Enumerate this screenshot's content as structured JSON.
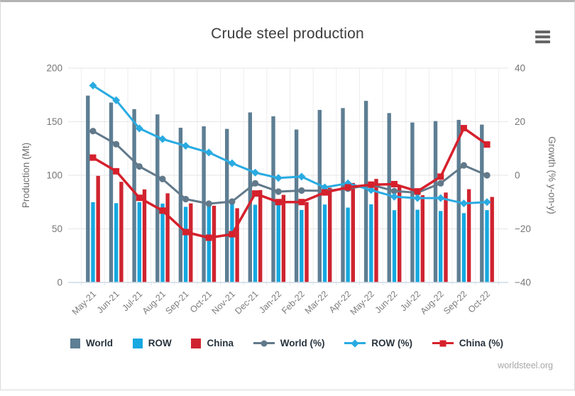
{
  "page": {
    "title": "Crude steel production",
    "menu_icon": "hamburger-menu",
    "source": "worldsteel.org"
  },
  "chart_data": {
    "type": "combo-column-line",
    "categories": [
      "May-21",
      "Jun-21",
      "Jul-21",
      "Aug-21",
      "Sep-21",
      "Oct-21",
      "Nov-21",
      "Dec-21",
      "Jan-22",
      "Feb-22",
      "Mar-22",
      "Apr-22",
      "May-22",
      "Jun-22",
      "Jul-22",
      "Aug-22",
      "Sep-22",
      "Oct-22"
    ],
    "left_axis": {
      "title": "Production (Mt)",
      "range": [
        0,
        200
      ],
      "ticks": [
        0,
        50,
        100,
        150,
        200
      ]
    },
    "right_axis": {
      "title": "Growth (% y-on-y)",
      "range": [
        -40,
        40
      ],
      "ticks": [
        -40,
        -20,
        0,
        20,
        40
      ]
    },
    "grid": "horizontal and faint vertical category boundaries",
    "legend_position": "bottom",
    "bar_series": [
      {
        "name": "World",
        "color": "#5d7e93",
        "values": [
          174.4,
          167.9,
          161.7,
          156.8,
          144.4,
          145.7,
          143.3,
          158.7,
          155.0,
          142.7,
          161.0,
          162.7,
          169.5,
          158.1,
          149.3,
          150.6,
          151.7,
          147.3
        ]
      },
      {
        "name": "ROW",
        "color": "#16a8e0",
        "values": [
          74.9,
          74.0,
          74.9,
          73.6,
          70.6,
          74.1,
          74.0,
          72.5,
          73.3,
          67.7,
          72.7,
          69.9,
          72.9,
          67.4,
          67.9,
          66.7,
          64.7,
          67.5
        ]
      },
      {
        "name": "China",
        "color": "#cf2430",
        "values": [
          99.5,
          93.9,
          86.8,
          83.2,
          73.8,
          71.6,
          69.3,
          86.2,
          81.7,
          75.0,
          88.3,
          92.8,
          96.6,
          90.7,
          81.4,
          83.9,
          87.0,
          79.8
        ]
      }
    ],
    "line_series": [
      {
        "name": "World (%)",
        "color": "#61798a",
        "marker": "circle",
        "values": [
          16.5,
          11.6,
          3.3,
          -1.4,
          -8.9,
          -10.6,
          -9.8,
          -3.0,
          -6.1,
          -5.7,
          -5.8,
          -5.0,
          -3.5,
          -5.9,
          -6.5,
          -3.0,
          3.7,
          0.0
        ]
      },
      {
        "name": "ROW (%)",
        "color": "#29abe2",
        "marker": "diamond",
        "values": [
          33.5,
          28.0,
          17.5,
          13.5,
          11.0,
          8.5,
          4.5,
          1.0,
          -1.0,
          -0.5,
          -4.5,
          -3.0,
          -5.5,
          -8.0,
          -8.5,
          -8.5,
          -10.5,
          -10.0
        ]
      },
      {
        "name": "China (%)",
        "color": "#d6202c",
        "marker": "square",
        "values": [
          6.6,
          1.5,
          -8.4,
          -13.2,
          -21.2,
          -23.3,
          -22.0,
          -6.8,
          -10.0,
          -10.0,
          -6.4,
          -4.5,
          -3.5,
          -3.3,
          -6.0,
          -0.5,
          17.6,
          11.5
        ]
      }
    ]
  }
}
